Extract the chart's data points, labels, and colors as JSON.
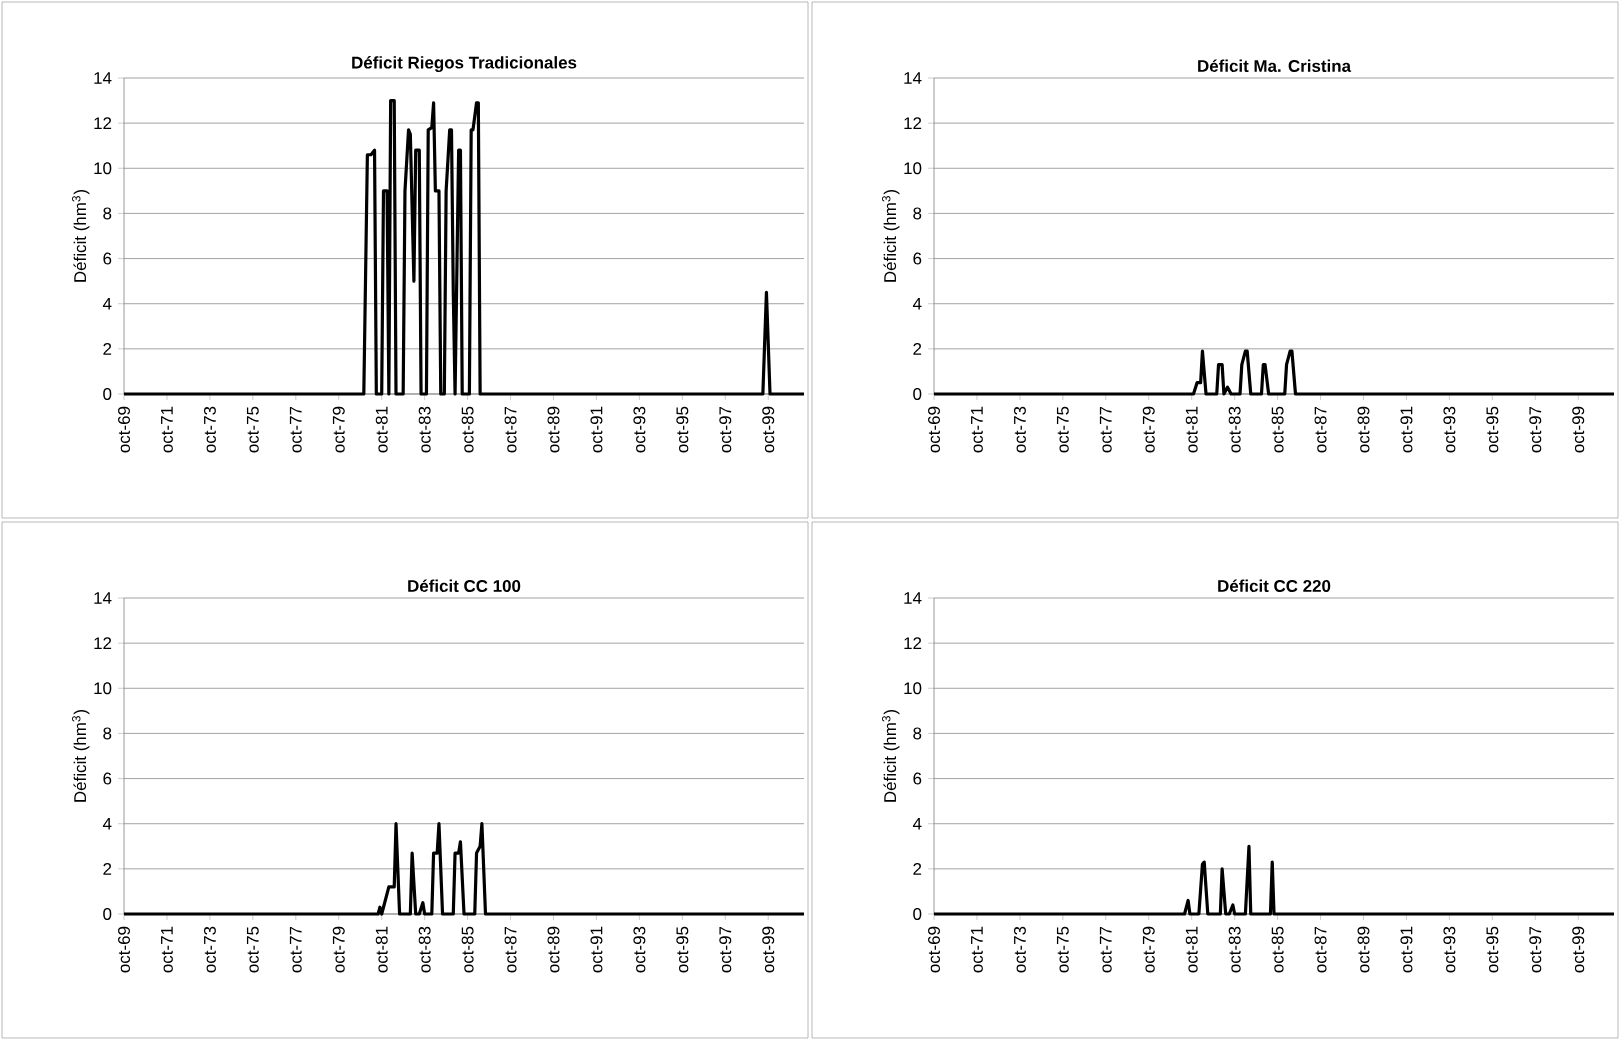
{
  "chart_data": [
    {
      "type": "line",
      "title": "Déficit Riegos Tradicionales",
      "ylabel": "Déficit (hm$^{3}$)",
      "color": "#000000",
      "grid": "y",
      "x": [
        "1969-10",
        "1980-12",
        "1981-02",
        "1981-04",
        "1981-06",
        "1981-07",
        "1981-10",
        "1981-11",
        "1982-01",
        "1982-02",
        "1982-03",
        "1982-05",
        "1982-06",
        "1982-10",
        "1982-11",
        "1983-01",
        "1983-02",
        "1983-04",
        "1983-05",
        "1983-07",
        "1983-08",
        "1983-11",
        "1983-12",
        "1984-02",
        "1984-03",
        "1984-04",
        "1984-06",
        "1984-07",
        "1984-09",
        "1984-10",
        "1984-12",
        "1985-01",
        "1985-02",
        "1985-03",
        "1985-05",
        "1985-06",
        "1985-07",
        "1985-11",
        "1985-12",
        "1986-01",
        "1986-03",
        "1986-04",
        "1986-05",
        "1999-07",
        "1999-09",
        "1999-11",
        "2001-06"
      ],
      "values": [
        0,
        0,
        10.6,
        10.6,
        10.8,
        0,
        0,
        9,
        9,
        0,
        13,
        13,
        0,
        0,
        9,
        11.7,
        11.5,
        5,
        10.8,
        10.8,
        0,
        0,
        11.7,
        11.8,
        12.9,
        9,
        9,
        0,
        0,
        9,
        11.7,
        11.7,
        4.5,
        0,
        10.8,
        10.8,
        0,
        0,
        11.7,
        11.7,
        12.9,
        12.9,
        0,
        0,
        4.5,
        0,
        0
      ],
      "xlim": [
        "1969-10",
        "2001-06"
      ],
      "ylim": [
        0,
        14
      ],
      "yticks": [
        0,
        2,
        4,
        6,
        8,
        10,
        12,
        14
      ],
      "xticks": [
        {
          "value": "1969-10",
          "label": "oct-69"
        },
        {
          "value": "1971-10",
          "label": "oct-71"
        },
        {
          "value": "1973-10",
          "label": "oct-73"
        },
        {
          "value": "1975-10",
          "label": "oct-75"
        },
        {
          "value": "1977-10",
          "label": "oct-77"
        },
        {
          "value": "1979-10",
          "label": "oct-79"
        },
        {
          "value": "1981-10",
          "label": "oct-81"
        },
        {
          "value": "1983-10",
          "label": "oct-83"
        },
        {
          "value": "1985-10",
          "label": "oct-85"
        },
        {
          "value": "1987-10",
          "label": "oct-87"
        },
        {
          "value": "1989-10",
          "label": "oct-89"
        },
        {
          "value": "1991-10",
          "label": "oct-91"
        },
        {
          "value": "1993-10",
          "label": "oct-93"
        },
        {
          "value": "1995-10",
          "label": "oct-95"
        },
        {
          "value": "1997-10",
          "label": "oct-97"
        },
        {
          "value": "1999-10",
          "label": "oct-99"
        }
      ]
    },
    {
      "type": "line",
      "title": "Déficit Ma. Cristina",
      "ylabel": "Déficit (hm$^{3}$)",
      "color": "#000000",
      "grid": "y",
      "x": [
        "1969-10",
        "1981-11",
        "1982-01",
        "1982-03",
        "1982-04",
        "1982-06",
        "1982-12",
        "1983-01",
        "1983-03",
        "1983-04",
        "1983-06",
        "1983-08",
        "1984-01",
        "1984-02",
        "1984-04",
        "1984-05",
        "1984-07",
        "1985-01",
        "1985-02",
        "1985-03",
        "1985-05",
        "1986-02",
        "1986-03",
        "1986-05",
        "1986-06",
        "1986-08",
        "2001-06"
      ],
      "values": [
        0,
        0,
        0.5,
        0.5,
        1.9,
        0,
        0,
        1.3,
        1.3,
        0,
        0.3,
        0,
        0,
        1.3,
        1.9,
        1.9,
        0,
        0,
        1.3,
        1.3,
        0,
        0,
        1.3,
        1.9,
        1.9,
        0,
        0
      ],
      "xlim": [
        "1969-10",
        "2001-06"
      ],
      "ylim": [
        0,
        14
      ],
      "yticks": [
        0,
        2,
        4,
        6,
        8,
        10,
        12,
        14
      ],
      "xticks": [
        {
          "value": "1969-10",
          "label": "oct-69"
        },
        {
          "value": "1971-10",
          "label": "oct-71"
        },
        {
          "value": "1973-10",
          "label": "oct-73"
        },
        {
          "value": "1975-10",
          "label": "oct-75"
        },
        {
          "value": "1977-10",
          "label": "oct-77"
        },
        {
          "value": "1979-10",
          "label": "oct-79"
        },
        {
          "value": "1981-10",
          "label": "oct-81"
        },
        {
          "value": "1983-10",
          "label": "oct-83"
        },
        {
          "value": "1985-10",
          "label": "oct-85"
        },
        {
          "value": "1987-10",
          "label": "oct-87"
        },
        {
          "value": "1989-10",
          "label": "oct-89"
        },
        {
          "value": "1991-10",
          "label": "oct-91"
        },
        {
          "value": "1993-10",
          "label": "oct-93"
        },
        {
          "value": "1995-10",
          "label": "oct-95"
        },
        {
          "value": "1997-10",
          "label": "oct-97"
        },
        {
          "value": "1999-10",
          "label": "oct-99"
        }
      ]
    },
    {
      "type": "line",
      "title": "Déficit CC 100",
      "ylabel": "Déficit (hm$^{3}$)",
      "color": "#000000",
      "grid": "y",
      "x": [
        "1969-10",
        "1981-08",
        "1981-09",
        "1981-10",
        "1982-02",
        "1982-05",
        "1982-06",
        "1982-08",
        "1983-02",
        "1983-03",
        "1983-05",
        "1983-07",
        "1983-09",
        "1983-10",
        "1984-02",
        "1984-03",
        "1984-05",
        "1984-06",
        "1984-08",
        "1985-02",
        "1985-03",
        "1985-05",
        "1985-06",
        "1985-08",
        "1986-02",
        "1986-03",
        "1986-05",
        "1986-06",
        "1986-08",
        "2001-06"
      ],
      "values": [
        0,
        0,
        0.3,
        0,
        1.2,
        1.2,
        4,
        0,
        0,
        2.7,
        0,
        0,
        0.5,
        0,
        0,
        2.7,
        2.7,
        4,
        0,
        0,
        2.7,
        2.7,
        3.2,
        0,
        0,
        2.7,
        3,
        4,
        0,
        0
      ],
      "xlim": [
        "1969-10",
        "2001-06"
      ],
      "ylim": [
        0,
        14
      ],
      "yticks": [
        0,
        2,
        4,
        6,
        8,
        10,
        12,
        14
      ],
      "xticks": [
        {
          "value": "1969-10",
          "label": "oct-69"
        },
        {
          "value": "1971-10",
          "label": "oct-71"
        },
        {
          "value": "1973-10",
          "label": "oct-73"
        },
        {
          "value": "1975-10",
          "label": "oct-75"
        },
        {
          "value": "1977-10",
          "label": "oct-77"
        },
        {
          "value": "1979-10",
          "label": "oct-79"
        },
        {
          "value": "1981-10",
          "label": "oct-81"
        },
        {
          "value": "1983-10",
          "label": "oct-83"
        },
        {
          "value": "1985-10",
          "label": "oct-85"
        },
        {
          "value": "1987-10",
          "label": "oct-87"
        },
        {
          "value": "1989-10",
          "label": "oct-89"
        },
        {
          "value": "1991-10",
          "label": "oct-91"
        },
        {
          "value": "1993-10",
          "label": "oct-93"
        },
        {
          "value": "1995-10",
          "label": "oct-95"
        },
        {
          "value": "1997-10",
          "label": "oct-97"
        },
        {
          "value": "1999-10",
          "label": "oct-99"
        }
      ]
    },
    {
      "type": "line",
      "title": "Déficit CC 220",
      "ylabel": "Déficit (hm$^{3}$)",
      "color": "#000000",
      "grid": "y",
      "x": [
        "1969-10",
        "1981-06",
        "1981-08",
        "1981-09",
        "1982-02",
        "1982-04",
        "1982-05",
        "1982-07",
        "1983-02",
        "1983-03",
        "1983-05",
        "1983-07",
        "1983-09",
        "1983-10",
        "1984-04",
        "1984-06",
        "1984-07",
        "1985-06",
        "1985-07",
        "1985-08",
        "2001-06"
      ],
      "values": [
        0,
        0,
        0.6,
        0,
        0,
        2.2,
        2.3,
        0,
        0,
        2,
        0,
        0,
        0.4,
        0,
        0,
        3,
        0,
        0,
        2.3,
        0,
        0
      ],
      "xlim": [
        "1969-10",
        "2001-06"
      ],
      "ylim": [
        0,
        14
      ],
      "yticks": [
        0,
        2,
        4,
        6,
        8,
        10,
        12,
        14
      ],
      "xticks": [
        {
          "value": "1969-10",
          "label": "oct-69"
        },
        {
          "value": "1971-10",
          "label": "oct-71"
        },
        {
          "value": "1973-10",
          "label": "oct-73"
        },
        {
          "value": "1975-10",
          "label": "oct-75"
        },
        {
          "value": "1977-10",
          "label": "oct-77"
        },
        {
          "value": "1979-10",
          "label": "oct-79"
        },
        {
          "value": "1981-10",
          "label": "oct-81"
        },
        {
          "value": "1983-10",
          "label": "oct-83"
        },
        {
          "value": "1985-10",
          "label": "oct-85"
        },
        {
          "value": "1987-10",
          "label": "oct-87"
        },
        {
          "value": "1989-10",
          "label": "oct-89"
        },
        {
          "value": "1991-10",
          "label": "oct-91"
        },
        {
          "value": "1993-10",
          "label": "oct-93"
        },
        {
          "value": "1995-10",
          "label": "oct-95"
        },
        {
          "value": "1997-10",
          "label": "oct-97"
        },
        {
          "value": "1999-10",
          "label": "oct-99"
        }
      ]
    }
  ]
}
